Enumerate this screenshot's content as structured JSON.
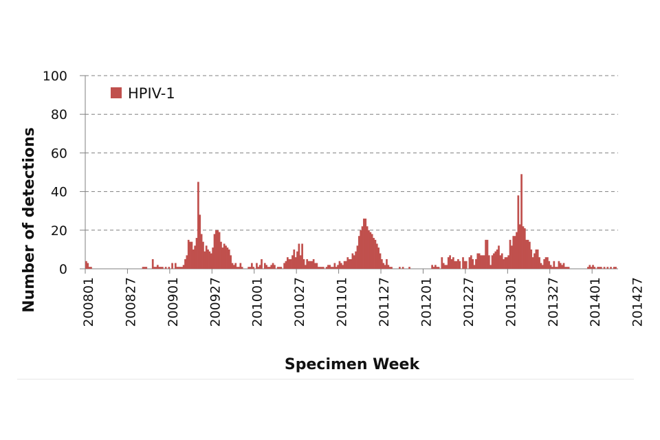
{
  "chart_data": {
    "type": "bar",
    "title": "",
    "xlabel": "Specimen Week",
    "ylabel": "Number of detections",
    "ylim": [
      0,
      100
    ],
    "yticks": [
      0,
      20,
      40,
      60,
      80,
      100
    ],
    "grid": true,
    "legend_position": "top-left",
    "x_tick_labels": [
      "200801",
      "200827",
      "200901",
      "200927",
      "201001",
      "201027",
      "201101",
      "201127",
      "201201",
      "201227",
      "201301",
      "201327",
      "201401",
      "201427"
    ],
    "series": [
      {
        "name": "HPIV-1",
        "color": "#c0504d",
        "values": [
          4,
          3,
          1,
          1,
          0,
          0,
          0,
          0,
          0,
          0,
          0,
          0,
          0,
          0,
          0,
          0,
          0,
          0,
          0,
          0,
          0,
          0,
          0,
          0,
          0,
          0,
          0,
          0,
          0,
          0,
          0,
          0,
          0,
          0,
          0,
          1,
          1,
          1,
          0,
          0,
          0,
          5,
          1,
          1,
          2,
          1,
          1,
          1,
          0,
          1,
          0,
          1,
          0,
          3,
          0,
          3,
          1,
          1,
          1,
          1,
          2,
          5,
          7,
          15,
          14,
          14,
          10,
          12,
          16,
          45,
          28,
          18,
          14,
          9,
          12,
          10,
          9,
          8,
          11,
          18,
          20,
          20,
          19,
          14,
          11,
          13,
          12,
          11,
          10,
          7,
          3,
          2,
          3,
          1,
          1,
          3,
          1,
          0,
          0,
          0,
          1,
          1,
          3,
          1,
          0,
          3,
          1,
          2,
          5,
          0,
          3,
          2,
          1,
          1,
          2,
          3,
          2,
          0,
          1,
          1,
          1,
          0,
          3,
          4,
          6,
          5,
          5,
          7,
          10,
          6,
          9,
          13,
          7,
          13,
          5,
          2,
          5,
          4,
          4,
          4,
          5,
          3,
          3,
          1,
          1,
          1,
          1,
          0,
          1,
          2,
          2,
          1,
          1,
          3,
          1,
          2,
          4,
          3,
          2,
          4,
          4,
          6,
          5,
          5,
          8,
          7,
          9,
          12,
          17,
          20,
          22,
          26,
          26,
          22,
          20,
          19,
          18,
          16,
          15,
          13,
          11,
          8,
          5,
          3,
          2,
          5,
          2,
          1,
          1,
          0,
          0,
          0,
          0,
          1,
          0,
          1,
          0,
          0,
          0,
          1,
          0,
          0,
          0,
          0,
          0,
          0,
          0,
          0,
          0,
          0,
          0,
          0,
          0,
          2,
          1,
          2,
          1,
          1,
          0,
          6,
          3,
          2,
          2,
          6,
          7,
          5,
          6,
          4,
          4,
          5,
          4,
          0,
          6,
          4,
          4,
          0,
          6,
          7,
          5,
          2,
          5,
          8,
          8,
          7,
          7,
          7,
          15,
          15,
          7,
          2,
          7,
          8,
          9,
          10,
          12,
          7,
          8,
          5,
          6,
          6,
          7,
          15,
          12,
          17,
          17,
          19,
          38,
          23,
          49,
          22,
          21,
          15,
          15,
          14,
          10,
          6,
          8,
          10,
          10,
          6,
          3,
          2,
          5,
          6,
          6,
          4,
          2,
          1,
          4,
          1,
          1,
          4,
          3,
          2,
          3,
          1,
          1,
          1,
          0,
          0,
          0,
          0,
          0,
          0,
          0,
          0,
          0,
          0,
          0,
          1,
          2,
          1,
          2,
          1,
          0,
          1,
          1,
          1,
          0,
          1,
          0,
          1,
          0,
          1,
          0,
          1,
          1,
          0
        ]
      }
    ]
  }
}
